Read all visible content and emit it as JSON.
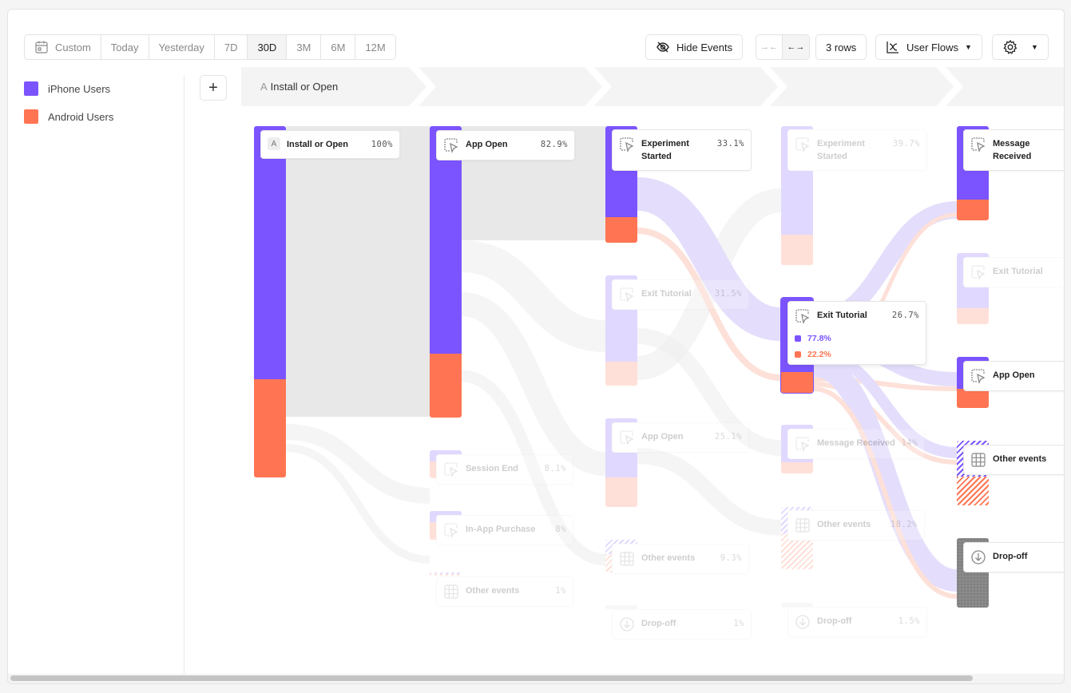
{
  "colors": {
    "iphone": "#7b54ff",
    "android": "#ff7553",
    "iphone_light": "#e4defc",
    "android_light": "#fde0d8",
    "flow_gray": "#e8e8e8",
    "dropoff": "#8a8a8a"
  },
  "toolbar": {
    "date_ranges": [
      {
        "label": "Custom",
        "icon": "calendar-icon"
      },
      {
        "label": "Today"
      },
      {
        "label": "Yesterday"
      },
      {
        "label": "7D"
      },
      {
        "label": "30D",
        "active": true
      },
      {
        "label": "3M"
      },
      {
        "label": "6M"
      },
      {
        "label": "12M"
      }
    ],
    "hide_events": "Hide Events",
    "rows": "3 rows",
    "view": "User Flows",
    "settings_icon": "gear-icon"
  },
  "legend": [
    {
      "label": "iPhone Users"
    },
    {
      "label": "Android Users"
    }
  ],
  "steps": {
    "first_letter": "A",
    "first_label": "Install or Open"
  },
  "columns": [
    {
      "nodes": [
        {
          "label": "Install or Open",
          "percent": "100%",
          "icon": "letter-a-icon",
          "letter": "A",
          "iphone_share": 0.72
        }
      ]
    },
    {
      "nodes": [
        {
          "label": "App Open",
          "percent": "82.9%",
          "icon": "cursor-click-icon",
          "iphone_share": 0.78
        },
        {
          "label": "Session End",
          "percent": "8.1%",
          "icon": "cursor-click-icon",
          "faded": true,
          "iphone_share": 0.4
        },
        {
          "label": "In-App Purchase",
          "percent": "8%",
          "icon": "cursor-click-icon",
          "faded": true,
          "iphone_share": 0.4
        },
        {
          "label": "Other events",
          "percent": "1%",
          "icon": "grid-icon",
          "faded": true,
          "hatched": true,
          "iphone_share": 0.5
        }
      ]
    },
    {
      "nodes": [
        {
          "label": "Experiment Started",
          "percent": "33.1%",
          "icon": "cursor-click-icon",
          "iphone_share": 0.78
        },
        {
          "label": "Exit Tutorial",
          "percent": "31.5%",
          "icon": "cursor-click-icon",
          "faded": true,
          "iphone_share": 0.78
        },
        {
          "label": "App Open",
          "percent": "25.1%",
          "icon": "cursor-click-icon",
          "faded": true,
          "iphone_share": 0.67
        },
        {
          "label": "Other events",
          "percent": "9.3%",
          "icon": "grid-icon",
          "faded": true,
          "hatched": true,
          "iphone_share": 0.45
        },
        {
          "label": "Drop-off",
          "percent": "1%",
          "icon": "arrow-down-circle-icon",
          "faded": true,
          "dropoff": true
        }
      ]
    },
    {
      "nodes": [
        {
          "label": "Experiment Started",
          "percent": "39.7%",
          "icon": "cursor-click-icon",
          "faded": true,
          "iphone_share": 0.78
        },
        {
          "label": "Exit Tutorial",
          "percent": "26.7%",
          "icon": "cursor-click-icon",
          "selected": true,
          "iphone_share": 0.778,
          "breakdown": [
            "77.8%",
            "22.2%"
          ]
        },
        {
          "label": "Message Received",
          "percent": "14%",
          "icon": "cursor-click-icon",
          "faded": true,
          "iphone_share": 0.77
        },
        {
          "label": "Other events",
          "percent": "18.2%",
          "icon": "grid-icon",
          "faded": true,
          "hatched": true,
          "iphone_share": 0.44
        },
        {
          "label": "Drop-off",
          "percent": "1.5%",
          "icon": "arrow-down-circle-icon",
          "faded": true,
          "dropoff": true
        }
      ]
    },
    {
      "nodes": [
        {
          "label": "Message Received",
          "icon": "cursor-click-icon",
          "iphone_share": 0.78
        },
        {
          "label": "Exit Tutorial",
          "icon": "cursor-click-icon",
          "faded": true,
          "iphone_share": 0.78
        },
        {
          "label": "App Open",
          "icon": "cursor-click-icon",
          "iphone_share": 0.62
        },
        {
          "label": "Other events",
          "icon": "grid-icon",
          "hatched": true,
          "iphone_share": 0.56
        },
        {
          "label": "Drop-off",
          "icon": "arrow-down-circle-icon",
          "dropoff": true
        }
      ]
    }
  ]
}
